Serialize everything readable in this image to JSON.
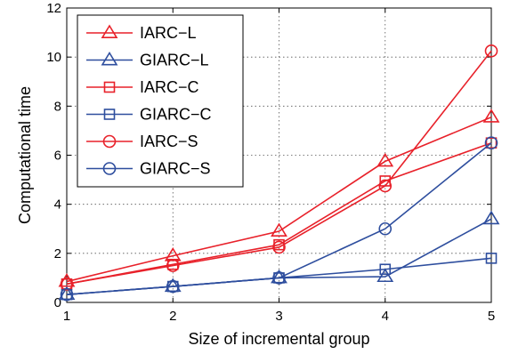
{
  "chart_data": {
    "type": "line",
    "title": "",
    "xlabel": "Size of incremental group",
    "ylabel": "Computational time",
    "x": [
      1,
      2,
      3,
      4,
      5
    ],
    "xlim": [
      1,
      5
    ],
    "ylim": [
      0,
      12
    ],
    "xticks": [
      1,
      2,
      3,
      4,
      5
    ],
    "yticks": [
      0,
      2,
      4,
      6,
      8,
      10,
      12
    ],
    "grid": true,
    "legend_position": "top-left",
    "series": [
      {
        "name": "IARC−L",
        "color": "#e8212a",
        "marker": "triangle",
        "values": [
          0.85,
          1.9,
          2.9,
          5.75,
          7.55
        ]
      },
      {
        "name": "GIARC−L",
        "color": "#2e4e9e",
        "marker": "triangle",
        "values": [
          0.32,
          0.65,
          1.0,
          1.05,
          3.4
        ]
      },
      {
        "name": "IARC−C",
        "color": "#e8212a",
        "marker": "square",
        "values": [
          0.75,
          1.55,
          2.35,
          4.95,
          6.5
        ]
      },
      {
        "name": "GIARC−C",
        "color": "#2e4e9e",
        "marker": "square",
        "values": [
          0.32,
          0.65,
          1.0,
          1.35,
          1.8
        ]
      },
      {
        "name": "IARC−S",
        "color": "#e8212a",
        "marker": "circle",
        "values": [
          0.75,
          1.5,
          2.25,
          4.75,
          10.25
        ]
      },
      {
        "name": "GIARC−S",
        "color": "#2e4e9e",
        "marker": "circle",
        "values": [
          0.32,
          0.65,
          1.0,
          3.0,
          6.5
        ]
      }
    ]
  }
}
